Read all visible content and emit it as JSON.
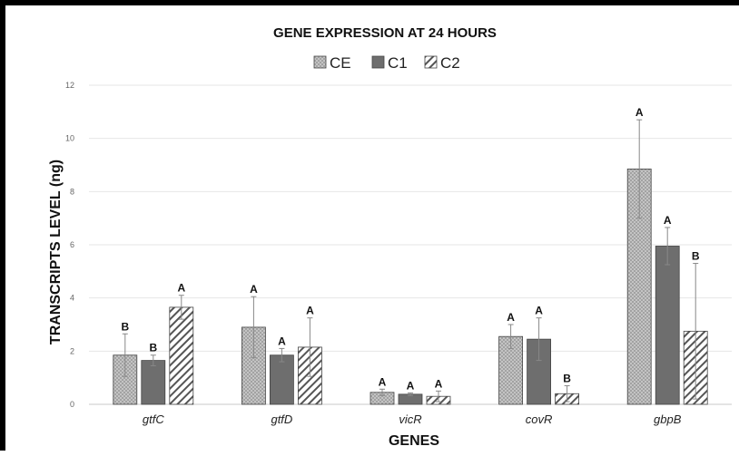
{
  "chart_data": {
    "type": "bar",
    "title": "GENE EXPRESSION AT 24 HOURS",
    "xlabel": "GENES",
    "ylabel": "TRANSCRIPTS LEVEL (ng)",
    "ylim": [
      0,
      12
    ],
    "yticks": [
      "0",
      "2",
      "4",
      "6",
      "8",
      "10",
      "12"
    ],
    "grid": true,
    "legend_position": "top-center",
    "categories": [
      "gtfC",
      "gtfD",
      "vicR",
      "covR",
      "gbpB"
    ],
    "series": [
      {
        "name": "CE",
        "fill": "checker",
        "color": "#b4b4b4",
        "values": [
          1.85,
          2.9,
          0.45,
          2.55,
          8.85
        ],
        "errors": [
          0.8,
          1.15,
          0.12,
          0.45,
          1.85
        ],
        "labels": [
          "B",
          "A",
          "A",
          "A",
          "A"
        ]
      },
      {
        "name": "C1",
        "fill": "solid",
        "color": "#6e6e6e",
        "values": [
          1.65,
          1.85,
          0.38,
          2.45,
          5.95
        ],
        "errors": [
          0.2,
          0.25,
          0.05,
          0.8,
          0.7
        ],
        "labels": [
          "B",
          "A",
          "A",
          "A",
          "A"
        ]
      },
      {
        "name": "C2",
        "fill": "hatch",
        "color": "#555555",
        "values": [
          3.65,
          2.15,
          0.3,
          0.4,
          2.75
        ],
        "errors": [
          0.45,
          1.1,
          0.2,
          0.3,
          2.55
        ],
        "labels": [
          "A",
          "A",
          "A",
          "B",
          "B"
        ]
      }
    ]
  }
}
